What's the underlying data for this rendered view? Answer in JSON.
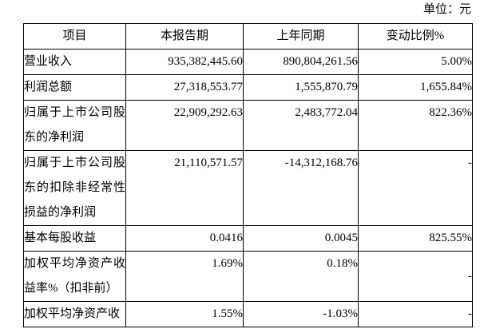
{
  "unit_label": "单位：元",
  "table": {
    "headers": {
      "item": "项目",
      "current": "本报告期",
      "prior": "上年同期",
      "change": "变动比例%"
    },
    "rows": [
      {
        "item": "营业收入",
        "current": "935,382,445.60",
        "prior": "890,804,261.56",
        "change": "5.00%"
      },
      {
        "item": "利润总额",
        "current": "27,318,553.77",
        "prior": "1,555,870.79",
        "change": "1,655.84%"
      },
      {
        "item": "归属于上市公司股东的净利润",
        "current": "22,909,292.63",
        "prior": "2,483,772.04",
        "change": "822.36%"
      },
      {
        "item": "归属于上市公司股东的扣除非经常性损益的净利润",
        "current": "21,110,571.57",
        "prior": "-14,312,168.76",
        "change": "-"
      },
      {
        "item": "基本每股收益",
        "current": "0.0416",
        "prior": "0.0045",
        "change": "825.55%"
      },
      {
        "item": "加权平均净资产收益率%（扣非前）",
        "current": "1.69%",
        "prior": "0.18%",
        "change": "-"
      },
      {
        "item": "加权平均净资产收",
        "current": "1.55%",
        "prior": "-1.03%",
        "change": "-"
      }
    ]
  }
}
